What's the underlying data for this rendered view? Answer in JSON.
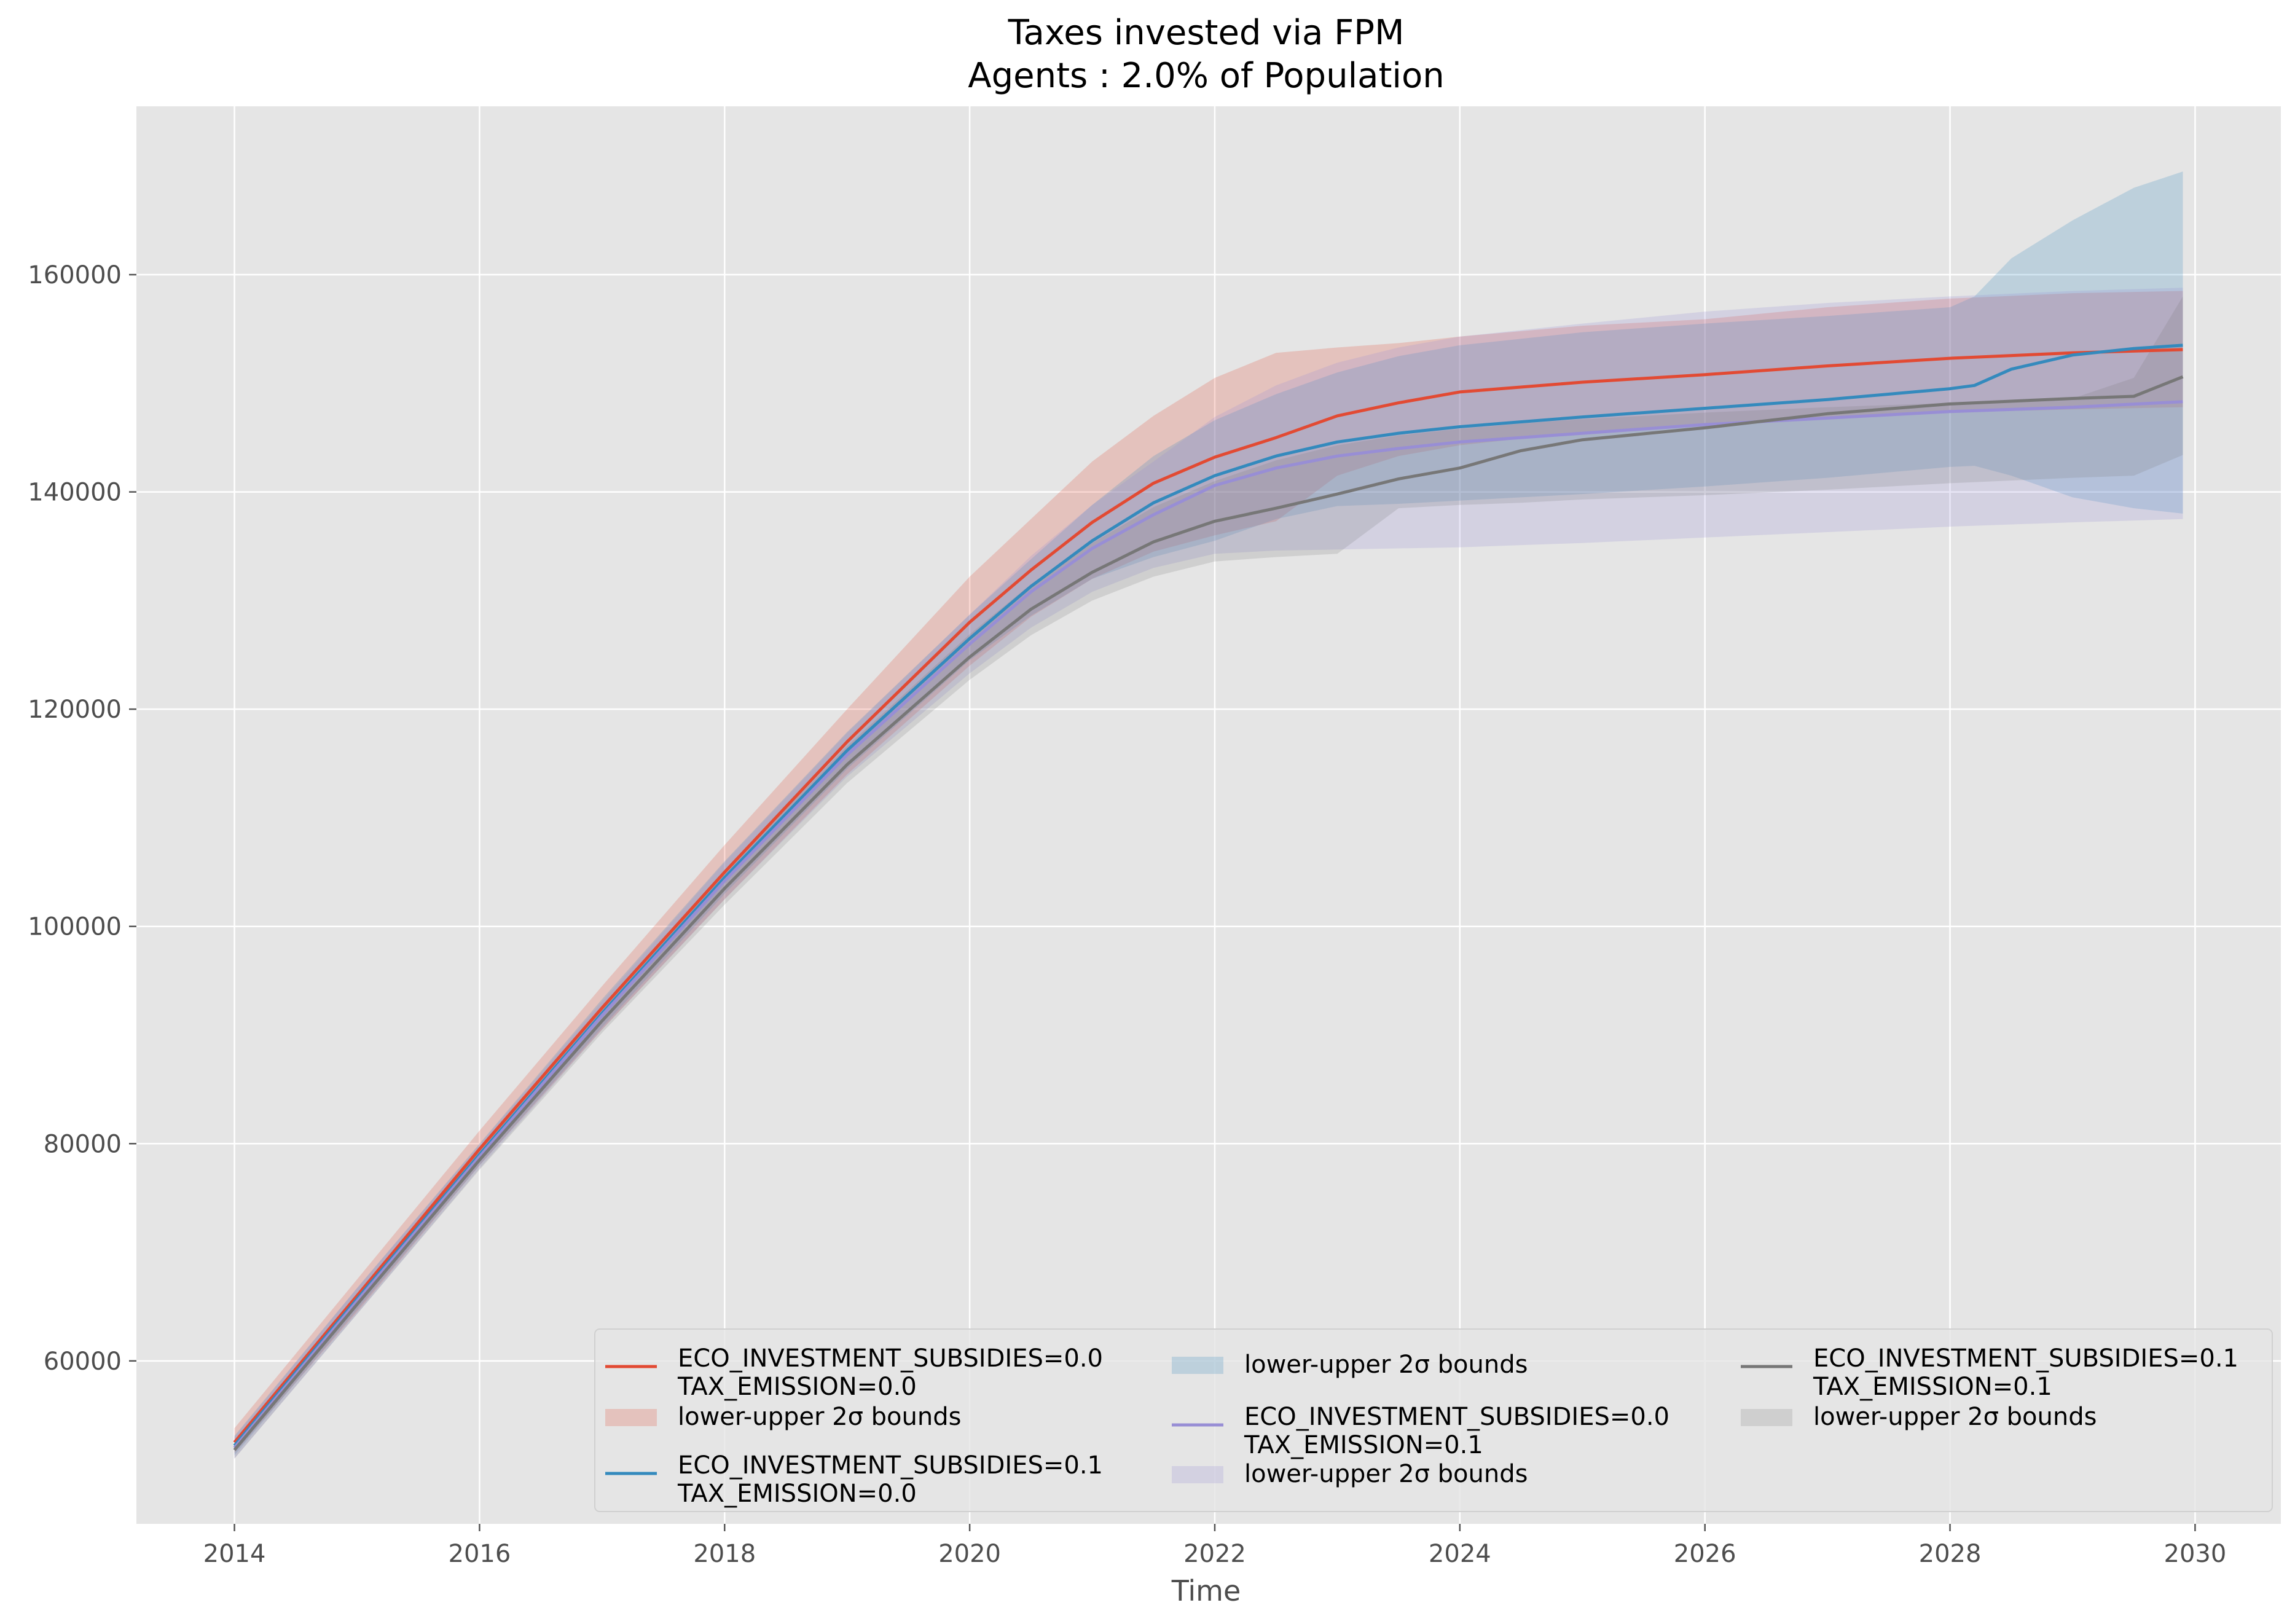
{
  "chart_data": {
    "type": "line",
    "title": "Taxes invested via FPM",
    "subtitle": "Agents : 2.0% of Population",
    "xlabel": "Time",
    "ylabel": "",
    "xlim": [
      2013.2,
      2030.7
    ],
    "ylim": [
      45000,
      175500
    ],
    "xticks": [
      2014,
      2016,
      2018,
      2020,
      2022,
      2024,
      2026,
      2028,
      2030
    ],
    "yticks": [
      60000,
      80000,
      100000,
      120000,
      140000,
      160000
    ],
    "grid": true,
    "legend_position": "bottom-right",
    "legend_columns": 3,
    "series": [
      {
        "name": "ECO_INVESTMENT_SUBSIDIES=0.0\nTAX_EMISSION=0.0",
        "color": "#E24A33",
        "band_label": "lower-upper 2σ bounds",
        "band_color": "#E24A33",
        "band_opacity": 0.22,
        "x": [
          2014,
          2015,
          2016,
          2017,
          2018,
          2019,
          2020,
          2020.5,
          2021,
          2021.5,
          2022,
          2022.5,
          2023,
          2023.5,
          2024,
          2025,
          2026,
          2027,
          2028,
          2029,
          2029.9
        ],
        "y": [
          52500,
          66000,
          79500,
          92500,
          105000,
          117000,
          128000,
          132800,
          137200,
          140800,
          143200,
          145000,
          147000,
          148200,
          149200,
          150100,
          150800,
          151600,
          152300,
          152800,
          153100
        ],
        "lower": [
          51500,
          64500,
          78000,
          90500,
          102500,
          114000,
          124000,
          128500,
          132000,
          134500,
          136000,
          137300,
          141500,
          143300,
          144300,
          145500,
          146200,
          146800,
          147300,
          147600,
          147800
        ],
        "upper": [
          53800,
          67500,
          81200,
          94500,
          107500,
          120000,
          132200,
          137500,
          142800,
          147000,
          150500,
          152800,
          153300,
          153700,
          154300,
          155300,
          155900,
          157000,
          157800,
          158300,
          158500
        ]
      },
      {
        "name": "ECO_INVESTMENT_SUBSIDIES=0.1\nTAX_EMISSION=0.0",
        "color": "#348ABD",
        "band_label": "lower-upper 2σ bounds",
        "band_color": "#348ABD",
        "band_opacity": 0.22,
        "x": [
          2014,
          2015,
          2016,
          2017,
          2018,
          2019,
          2020,
          2020.5,
          2021,
          2021.5,
          2022,
          2022.5,
          2023,
          2023.5,
          2024,
          2025,
          2026,
          2027,
          2028,
          2028.2,
          2028.5,
          2029,
          2029.5,
          2029.9
        ],
        "y": [
          52200,
          65700,
          79000,
          92000,
          104500,
          116200,
          126500,
          131300,
          135500,
          139000,
          141500,
          143300,
          144600,
          145400,
          146000,
          146900,
          147700,
          148500,
          149500,
          149800,
          151300,
          152600,
          153200,
          153500
        ],
        "lower": [
          51300,
          64700,
          78000,
          90700,
          103000,
          114500,
          124500,
          128600,
          132000,
          134000,
          135500,
          137500,
          138700,
          138900,
          139200,
          139800,
          140500,
          141300,
          142300,
          142400,
          141500,
          139500,
          138500,
          138000
        ],
        "upper": [
          53100,
          66700,
          80000,
          93300,
          106000,
          117900,
          128700,
          133800,
          138800,
          143300,
          146600,
          149000,
          151000,
          152500,
          153500,
          154700,
          155500,
          156200,
          157000,
          158000,
          161500,
          165000,
          168000,
          169500
        ]
      },
      {
        "name": "ECO_INVESTMENT_SUBSIDIES=0.0\nTAX_EMISSION=0.1",
        "color": "#988ED5",
        "band_label": "lower-upper 2σ bounds",
        "band_color": "#988ED5",
        "band_opacity": 0.22,
        "x": [
          2014,
          2015,
          2016,
          2017,
          2018,
          2019,
          2020,
          2020.5,
          2021,
          2021.5,
          2022,
          2022.5,
          2023,
          2023.5,
          2024,
          2025,
          2026,
          2027,
          2028,
          2029,
          2029.9
        ],
        "y": [
          52000,
          65500,
          78800,
          91800,
          104200,
          115800,
          126000,
          130800,
          134800,
          137900,
          140600,
          142200,
          143300,
          144000,
          144600,
          145400,
          146200,
          146800,
          147400,
          147800,
          148300
        ],
        "lower": [
          51000,
          64300,
          77700,
          90500,
          102500,
          113800,
          123300,
          127500,
          130800,
          133000,
          134300,
          134600,
          134700,
          134800,
          134900,
          135300,
          135800,
          136300,
          136800,
          137200,
          137500
        ],
        "upper": [
          53000,
          66700,
          79900,
          93100,
          105900,
          117800,
          128700,
          134100,
          138800,
          142800,
          146900,
          149800,
          151900,
          153300,
          154300,
          155500,
          156600,
          157400,
          158000,
          158500,
          158800
        ]
      },
      {
        "name": "ECO_INVESTMENT_SUBSIDIES=0.1\nTAX_EMISSION=0.1",
        "color": "#777777",
        "band_label": "lower-upper 2σ bounds",
        "band_color": "#777777",
        "band_opacity": 0.2,
        "x": [
          2014,
          2015,
          2016,
          2017,
          2018,
          2019,
          2020,
          2020.5,
          2021,
          2021.5,
          2022,
          2022.5,
          2023,
          2023.5,
          2024,
          2024.5,
          2025,
          2026,
          2027,
          2028,
          2029,
          2029.5,
          2029.9
        ],
        "y": [
          51800,
          65200,
          78500,
          91300,
          103500,
          114900,
          124800,
          129200,
          132600,
          135400,
          137300,
          138500,
          139800,
          141200,
          142200,
          143800,
          144800,
          145900,
          147200,
          148100,
          148600,
          148800,
          150600
        ],
        "lower": [
          51000,
          64300,
          77600,
          90200,
          102000,
          113200,
          122700,
          126800,
          130000,
          132200,
          133600,
          134000,
          134300,
          138500,
          138800,
          139000,
          139300,
          139700,
          140200,
          140800,
          141300,
          141500,
          143400
        ],
        "upper": [
          52700,
          66200,
          79400,
          92500,
          105000,
          116600,
          126900,
          131500,
          135300,
          138600,
          141000,
          142900,
          144300,
          145200,
          145800,
          146300,
          146700,
          147300,
          147800,
          148200,
          148600,
          150500,
          158000
        ]
      }
    ]
  }
}
